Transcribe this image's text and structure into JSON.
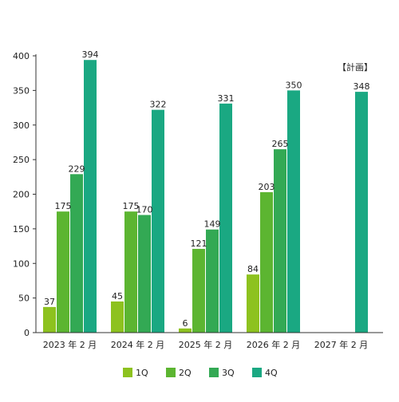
{
  "chart_data": {
    "type": "bar",
    "categories": [
      "2023 年 2 月",
      "2024 年 2 月",
      "2025 年 2 月",
      "2026 年 2 月",
      "2027 年 2 月"
    ],
    "series": [
      {
        "name": "1Q",
        "color": "#8dc21f",
        "values": [
          37,
          45,
          6,
          84,
          null
        ]
      },
      {
        "name": "2Q",
        "color": "#5cb531",
        "values": [
          175,
          175,
          121,
          203,
          null
        ]
      },
      {
        "name": "3Q",
        "color": "#33a954",
        "values": [
          229,
          170,
          149,
          265,
          null
        ]
      },
      {
        "name": "4Q",
        "color": "#1aa882",
        "values": [
          394,
          322,
          331,
          350,
          348
        ]
      }
    ],
    "ylim": [
      0,
      400
    ],
    "yticks": [
      0,
      50,
      100,
      150,
      200,
      250,
      300,
      350,
      400
    ],
    "annotations": [
      {
        "text": "【計画】",
        "category": "2027 年 2 月"
      }
    ],
    "legend_position": "bottom",
    "grid": false
  }
}
